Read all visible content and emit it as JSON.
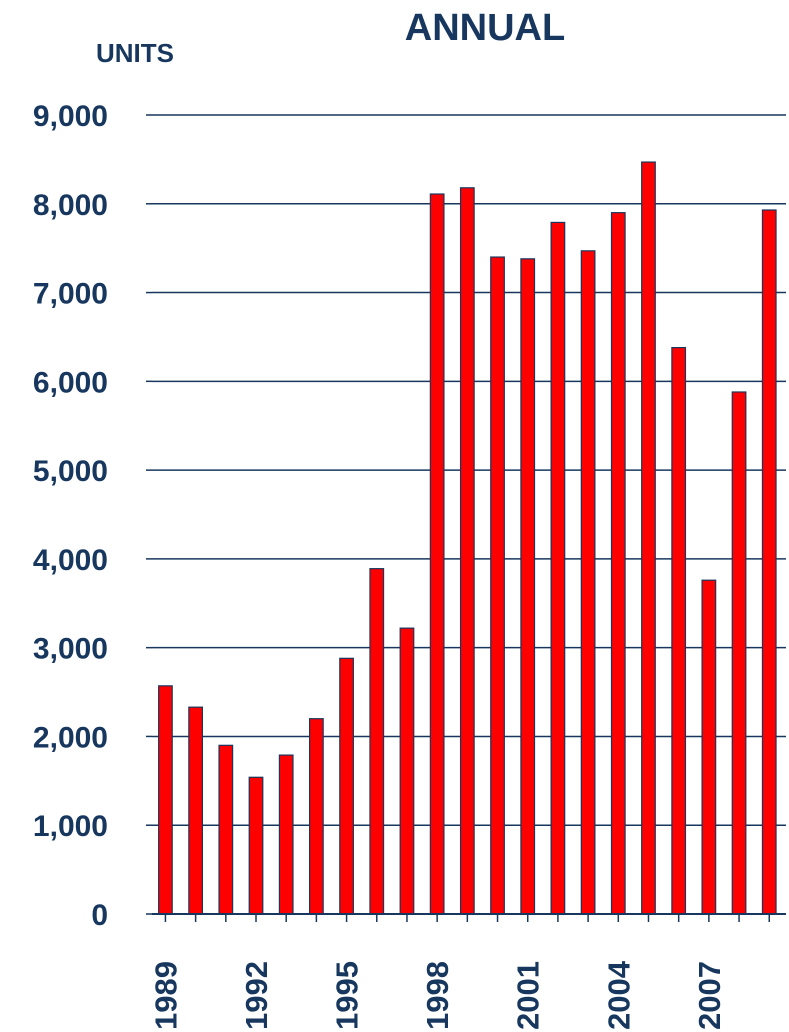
{
  "chart_data": {
    "type": "bar",
    "title": "ANNUAL",
    "ylabel": "UNITS",
    "xlabel": "",
    "ylim": [
      0,
      9000
    ],
    "yticks": [
      0,
      1000,
      2000,
      3000,
      4000,
      5000,
      6000,
      7000,
      8000,
      9000
    ],
    "ytick_labels": [
      "0",
      "1,000",
      "2,000",
      "3,000",
      "4,000",
      "5,000",
      "6,000",
      "7,000",
      "8,000",
      "9,000"
    ],
    "xtick_labels": [
      "1989",
      "1992",
      "1995",
      "1998",
      "2001",
      "2004",
      "2007"
    ],
    "categories": [
      "1989",
      "1990",
      "1991",
      "1992",
      "1993",
      "1994",
      "1995",
      "1996",
      "1997",
      "1998",
      "1999",
      "2000",
      "2001",
      "2002",
      "2003",
      "2004",
      "2005",
      "2006",
      "2007",
      "2008",
      "2009"
    ],
    "values": [
      2570,
      2330,
      1900,
      1540,
      1790,
      2200,
      2880,
      3890,
      3220,
      8110,
      8180,
      7400,
      7380,
      7790,
      7470,
      7900,
      8470,
      6380,
      3760,
      5880,
      7930
    ],
    "grid": true,
    "legend": "none",
    "colors": {
      "bar_fill": "#FF0000",
      "bar_stroke": "#17375E",
      "text": "#17375E",
      "grid": "#17375E"
    }
  }
}
